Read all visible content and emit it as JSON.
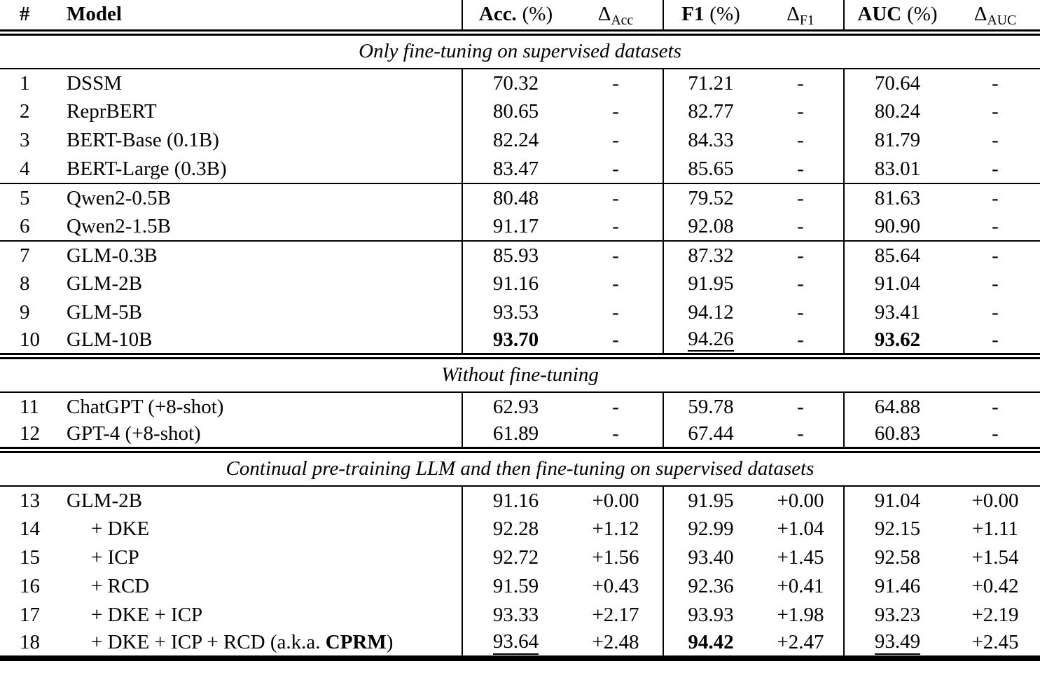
{
  "table": {
    "header": {
      "num": "#",
      "model": "Model",
      "metrics": [
        {
          "name": "Acc.",
          "unit": "(%)",
          "delta_symbol": "Δ",
          "delta_sub": "Acc"
        },
        {
          "name": "F1",
          "unit": "(%)",
          "delta_symbol": "Δ",
          "delta_sub": "F1"
        },
        {
          "name": "AUC",
          "unit": "(%)",
          "delta_symbol": "Δ",
          "delta_sub": "AUC"
        }
      ]
    },
    "sections": [
      {
        "title": "Only fine-tuning on supervised datasets",
        "groups": [
          {
            "rows": [
              {
                "num": "1",
                "model": "DSSM",
                "cells": [
                  "70.32",
                  "-",
                  "71.21",
                  "-",
                  "70.64",
                  "-"
                ]
              },
              {
                "num": "2",
                "model": "ReprBERT",
                "cells": [
                  "80.65",
                  "-",
                  "82.77",
                  "-",
                  "80.24",
                  "-"
                ]
              },
              {
                "num": "3",
                "model": "BERT-Base (0.1B)",
                "cells": [
                  "82.24",
                  "-",
                  "84.33",
                  "-",
                  "81.79",
                  "-"
                ]
              },
              {
                "num": "4",
                "model": "BERT-Large (0.3B)",
                "cells": [
                  "83.47",
                  "-",
                  "85.65",
                  "-",
                  "83.01",
                  "-"
                ]
              }
            ]
          },
          {
            "rows": [
              {
                "num": "5",
                "model": "Qwen2-0.5B",
                "cells": [
                  "80.48",
                  "-",
                  "79.52",
                  "-",
                  "81.63",
                  "-"
                ]
              },
              {
                "num": "6",
                "model": "Qwen2-1.5B",
                "cells": [
                  "91.17",
                  "-",
                  "92.08",
                  "-",
                  "90.90",
                  "-"
                ]
              }
            ]
          },
          {
            "rows": [
              {
                "num": "7",
                "model": "GLM-0.3B",
                "cells": [
                  "85.93",
                  "-",
                  "87.32",
                  "-",
                  "85.64",
                  "-"
                ]
              },
              {
                "num": "8",
                "model": "GLM-2B",
                "cells": [
                  "91.16",
                  "-",
                  "91.95",
                  "-",
                  "91.04",
                  "-"
                ]
              },
              {
                "num": "9",
                "model": "GLM-5B",
                "cells": [
                  "93.53",
                  "-",
                  "94.12",
                  "-",
                  "93.41",
                  "-"
                ]
              },
              {
                "num": "10",
                "model": "GLM-10B",
                "cells": [
                  {
                    "v": "93.70",
                    "bold": true
                  },
                  "-",
                  {
                    "v": "94.26",
                    "underline": true
                  },
                  "-",
                  {
                    "v": "93.62",
                    "bold": true
                  },
                  "-"
                ]
              }
            ]
          }
        ]
      },
      {
        "title": "Without fine-tuning",
        "groups": [
          {
            "rows": [
              {
                "num": "11",
                "model": "ChatGPT (+8-shot)",
                "cells": [
                  "62.93",
                  "-",
                  "59.78",
                  "-",
                  "64.88",
                  "-"
                ]
              },
              {
                "num": "12",
                "model": "GPT-4 (+8-shot)",
                "cells": [
                  "61.89",
                  "-",
                  "67.44",
                  "-",
                  "60.83",
                  "-"
                ]
              }
            ]
          }
        ]
      },
      {
        "title": "Continual pre-training LLM and then fine-tuning on supervised datasets",
        "groups": [
          {
            "rows": [
              {
                "num": "13",
                "model": "GLM-2B",
                "cells": [
                  "91.16",
                  "+0.00",
                  "91.95",
                  "+0.00",
                  "91.04",
                  "+0.00"
                ]
              },
              {
                "num": "14",
                "model": "+ DKE",
                "indent": true,
                "cells": [
                  "92.28",
                  "+1.12",
                  "92.99",
                  "+1.04",
                  "92.15",
                  "+1.11"
                ]
              },
              {
                "num": "15",
                "model": "+ ICP",
                "indent": true,
                "cells": [
                  "92.72",
                  "+1.56",
                  "93.40",
                  "+1.45",
                  "92.58",
                  "+1.54"
                ]
              },
              {
                "num": "16",
                "model": "+ RCD",
                "indent": true,
                "cells": [
                  "91.59",
                  "+0.43",
                  "92.36",
                  "+0.41",
                  "91.46",
                  "+0.42"
                ]
              },
              {
                "num": "17",
                "model": "+ DKE + ICP",
                "indent": true,
                "cells": [
                  "93.33",
                  "+2.17",
                  "93.93",
                  "+1.98",
                  "93.23",
                  "+2.19"
                ]
              },
              {
                "num": "18",
                "model": "+ DKE + ICP + RCD (a.k.a. ",
                "model_bold": "CPRM",
                "model_after": ")",
                "indent": true,
                "cells": [
                  {
                    "v": "93.64",
                    "underline": true
                  },
                  "+2.48",
                  {
                    "v": "94.42",
                    "bold": true
                  },
                  "+2.47",
                  {
                    "v": "93.49",
                    "underline": true
                  },
                  "+2.45"
                ]
              }
            ]
          }
        ]
      }
    ]
  }
}
